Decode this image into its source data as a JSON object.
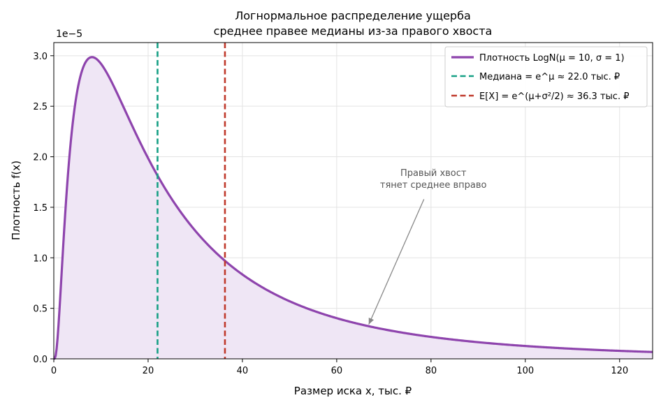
{
  "chart_data": {
    "type": "line",
    "title": "Логнормальное распределение ущерба",
    "subtitle": "среднее правее медианы из-за правого хвоста",
    "xlabel": "Размер иска x, тыс. ₽",
    "ylabel": "Плотность f(x)",
    "y_scale_label": "1e−5",
    "xlim": [
      0,
      127
    ],
    "ylim": [
      0,
      3.13
    ],
    "x_ticks": [
      0,
      20,
      40,
      60,
      80,
      100,
      120
    ],
    "y_ticks": [
      0.0,
      0.5,
      1.0,
      1.5,
      2.0,
      2.5,
      3.0
    ],
    "grid": true,
    "legend_position": "top-right",
    "density": {
      "name": "Плотность LogN(μ = 10,  σ = 1)",
      "color": "#8e44ad",
      "fill_color": "#efe6f5",
      "mu": 10,
      "sigma": 1,
      "x": [
        0.5,
        1,
        2,
        3,
        4,
        5,
        6,
        7,
        8,
        9,
        10,
        12,
        14,
        16,
        18,
        20,
        22,
        25,
        30,
        35,
        36.3,
        40,
        45,
        50,
        60,
        67,
        70,
        80,
        90,
        100,
        110,
        120,
        127
      ],
      "y": [
        0.04,
        0.68,
        1.92,
        2.58,
        2.88,
        2.99,
        2.99,
        2.94,
        2.86,
        2.77,
        2.66,
        2.45,
        2.25,
        2.06,
        1.89,
        1.74,
        1.6,
        1.42,
        1.17,
        0.99,
        0.95,
        0.86,
        0.74,
        0.65,
        0.5,
        0.43,
        0.4,
        0.33,
        0.27,
        0.23,
        0.19,
        0.17,
        0.15
      ]
    },
    "median": {
      "name": "Медиана  = e^μ ≈ 22.0 тыс. ₽",
      "value": 22.0,
      "color": "#16a085"
    },
    "mean": {
      "name": "E[X] = e^(μ+σ²/2) ≈ 36.3 тыс. ₽",
      "value": 36.3,
      "color": "#c0392b"
    },
    "annotation": {
      "lines": [
        "Правый хвост",
        "тянет среднее вправо"
      ],
      "text_x": 80.5,
      "text_y": 1.72,
      "arrow_from": [
        78.5,
        1.58
      ],
      "arrow_to": [
        66.8,
        0.34
      ],
      "color": "#555555"
    }
  }
}
